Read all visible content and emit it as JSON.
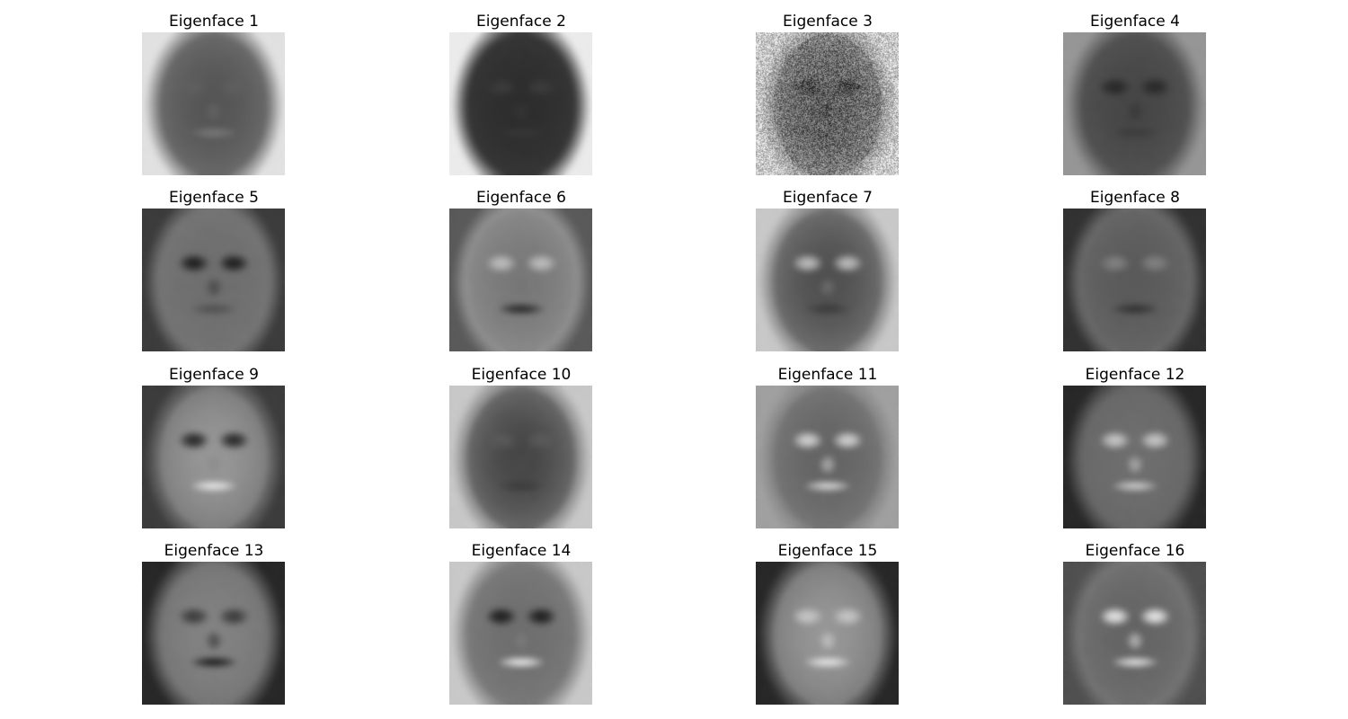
{
  "figure": {
    "grid": {
      "rows": 4,
      "cols": 4
    },
    "colormap": "gray",
    "axes": "off",
    "panels": [
      {
        "title": "Eigenface 1"
      },
      {
        "title": "Eigenface 2"
      },
      {
        "title": "Eigenface 3"
      },
      {
        "title": "Eigenface 4"
      },
      {
        "title": "Eigenface 5"
      },
      {
        "title": "Eigenface 6"
      },
      {
        "title": "Eigenface 7"
      },
      {
        "title": "Eigenface 8"
      },
      {
        "title": "Eigenface 9"
      },
      {
        "title": "Eigenface 10"
      },
      {
        "title": "Eigenface 11"
      },
      {
        "title": "Eigenface 12"
      },
      {
        "title": "Eigenface 13"
      },
      {
        "title": "Eigenface 14"
      },
      {
        "title": "Eigenface 15"
      },
      {
        "title": "Eigenface 16"
      }
    ]
  }
}
